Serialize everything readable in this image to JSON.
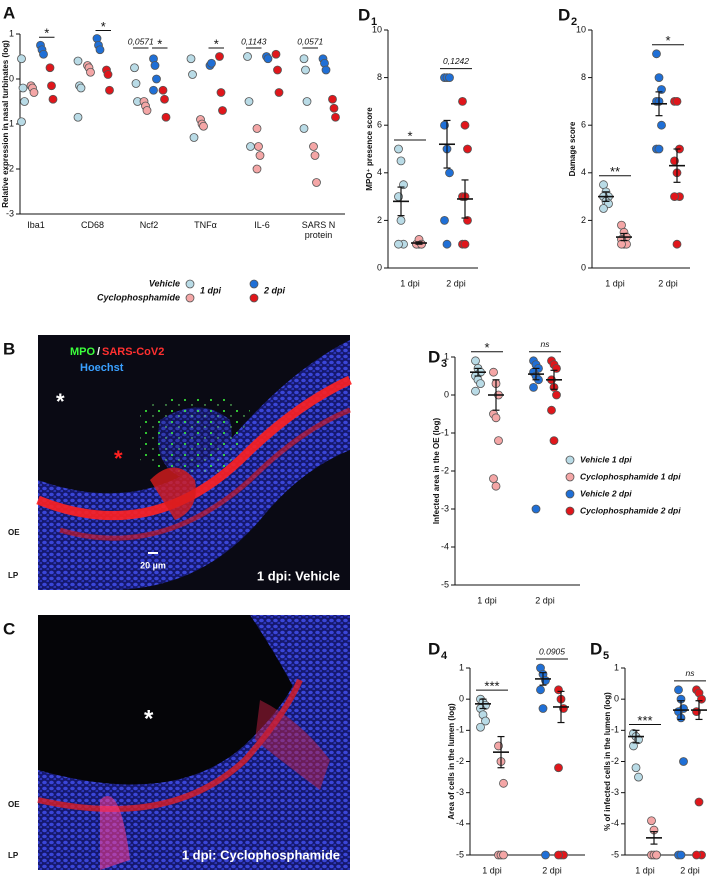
{
  "chart_data": [
    {
      "type": "dot",
      "panel": "A",
      "ylabel": "Relative expression in nasal turbinates (log)",
      "categories": [
        "Iba1",
        "CD68",
        "Ncf2",
        "TNFα",
        "IL-6",
        "SARS N protein"
      ],
      "groups": [
        "1 dpi",
        "2 dpi"
      ],
      "ylim": [
        -3,
        1
      ],
      "yticks": [
        -3,
        -2,
        -1,
        0,
        1
      ],
      "series": [
        {
          "name": "Vehicle",
          "colors": [
            "#b9dbe6",
            "#1f6fd6"
          ],
          "values": [
            [
              [
                0.45,
                -0.2,
                -0.5,
                -0.95
              ],
              [
                0.75,
                0.65,
                0.55
              ]
            ],
            [
              [
                0.4,
                -0.15,
                -0.2,
                -0.85
              ],
              [
                0.9,
                0.75,
                0.65
              ]
            ],
            [
              [
                0.25,
                -0.1,
                -0.5
              ],
              [
                0.45,
                0.3,
                0,
                -0.25
              ]
            ],
            [
              [
                0.45,
                0.1,
                -1.3
              ],
              [
                0.3,
                0.35
              ]
            ],
            [
              [
                0.5,
                -0.5,
                -1.5
              ],
              [
                0.5,
                0.45
              ]
            ],
            [
              [
                0.45,
                0.2,
                -0.5,
                -1.1
              ],
              [
                0.45,
                0.35,
                0.2
              ]
            ]
          ]
        },
        {
          "name": "Cyclophosphamide",
          "colors": [
            "#f4a6a6",
            "#e0161b"
          ],
          "values": [
            [
              [
                -0.15,
                -0.2,
                -0.3
              ],
              [
                0.25,
                -0.15,
                -0.45
              ]
            ],
            [
              [
                0.3,
                0.25,
                0.15
              ],
              [
                0.2,
                0.1,
                -0.25
              ]
            ],
            [
              [
                -0.5,
                -0.6,
                -0.7
              ],
              [
                -0.25,
                -0.45,
                -0.85
              ]
            ],
            [
              [
                -0.9,
                -1.0,
                -1.05
              ],
              [
                0.5,
                -0.3,
                -0.7
              ]
            ],
            [
              [
                -1.1,
                -1.5,
                -1.7,
                -2.0
              ],
              [
                0.55,
                0.2,
                -0.3
              ]
            ],
            [
              [
                -1.5,
                -1.7,
                -2.3
              ],
              [
                -0.45,
                -0.65,
                -0.85
              ]
            ]
          ]
        }
      ],
      "annotations": [
        {
          "text": "*",
          "category": 0,
          "group": 1
        },
        {
          "text": "*",
          "category": 1,
          "group": 1
        },
        {
          "text": "0,0571",
          "category": 2,
          "group": 0
        },
        {
          "text": "*",
          "category": 2,
          "group": 1
        },
        {
          "text": "*",
          "category": 3,
          "group": 1
        },
        {
          "text": "0,1143",
          "category": 4,
          "group": 0
        },
        {
          "text": "0,0571",
          "category": 5,
          "group": 0
        }
      ]
    },
    {
      "type": "group-dot",
      "panel": "D",
      "panel_index": "1",
      "ylabel": "MPO⁺ presence score",
      "groups": [
        "1 dpi",
        "2 dpi"
      ],
      "ylim": [
        0,
        10
      ],
      "yticks": [
        0,
        2,
        4,
        6,
        8,
        10
      ],
      "series": [
        {
          "colors": [
            "#b9dbe6",
            "#1f6fd6"
          ],
          "values": [
            [
              5,
              4.5,
              3.5,
              3,
              2,
              1,
              1
            ],
            [
              8,
              8,
              8,
              6,
              5,
              4,
              2,
              1
            ]
          ],
          "means": [
            2.8,
            5.2
          ],
          "sems": [
            0.6,
            1.0
          ]
        },
        {
          "colors": [
            "#f4a6a6",
            "#e0161b"
          ],
          "values": [
            [
              1,
              1,
              1,
              1,
              1.2,
              1
            ],
            [
              7,
              6,
              5,
              3,
              3,
              2,
              1,
              1
            ]
          ],
          "means": [
            1.05,
            2.9
          ],
          "sems": [
            0.05,
            0.8
          ]
        }
      ],
      "annotations": [
        {
          "text": "*",
          "group": 0
        },
        {
          "text": "0,1242",
          "group": 1
        }
      ]
    },
    {
      "type": "group-dot",
      "panel": "D",
      "panel_index": "2",
      "ylabel": "Damage score",
      "groups": [
        "1 dpi",
        "2 dpi"
      ],
      "ylim": [
        0,
        10
      ],
      "yticks": [
        0,
        2,
        4,
        6,
        8,
        10
      ],
      "series": [
        {
          "colors": [
            "#b9dbe6",
            "#1f6fd6"
          ],
          "values": [
            [
              3.5,
              3.2,
              3,
              3,
              2.8,
              2.7,
              2.5
            ],
            [
              9,
              8,
              7.5,
              7,
              7,
              6,
              5,
              5
            ]
          ],
          "means": [
            3,
            6.9
          ],
          "sems": [
            0.2,
            0.5
          ]
        },
        {
          "colors": [
            "#f4a6a6",
            "#e0161b"
          ],
          "values": [
            [
              1.8,
              1.5,
              1.3,
              1.2,
              1,
              1,
              1
            ],
            [
              7,
              7,
              5,
              4.5,
              4,
              3,
              3,
              1
            ]
          ],
          "means": [
            1.3,
            4.3
          ],
          "sems": [
            0.15,
            0.7
          ]
        }
      ],
      "annotations": [
        {
          "text": "**",
          "group": 0
        },
        {
          "text": "*",
          "group": 1
        }
      ]
    },
    {
      "type": "group-dot",
      "panel": "D",
      "panel_index": "3",
      "ylabel": "Infected area in the OE (log)",
      "groups": [
        "1 dpi",
        "2 dpi"
      ],
      "ylim": [
        -5,
        1
      ],
      "yticks": [
        -5,
        -4,
        -3,
        -2,
        -1,
        0,
        1
      ],
      "series": [
        {
          "colors": [
            "#b9dbe6",
            "#1f6fd6"
          ],
          "values": [
            [
              0.9,
              0.7,
              0.6,
              0.5,
              0.4,
              0.3,
              0.1
            ],
            [
              0.9,
              0.8,
              0.7,
              0.6,
              0.5,
              0.4,
              0.2,
              -3
            ]
          ],
          "means": [
            0.6,
            0.55
          ],
          "sems": [
            0.1,
            0.15
          ]
        },
        {
          "colors": [
            "#f4a6a6",
            "#e0161b"
          ],
          "values": [
            [
              0.6,
              0.3,
              0,
              -0.5,
              -0.6,
              -1.2,
              -2.2,
              -2.4
            ],
            [
              0.9,
              0.8,
              0.7,
              0.4,
              0.2,
              0,
              -0.4,
              -1.2
            ]
          ],
          "means": [
            0,
            0.4
          ],
          "sems": [
            0.4,
            0.25
          ]
        }
      ],
      "annotations": [
        {
          "text": "*",
          "group": 0
        },
        {
          "text": "ns",
          "group": 1
        }
      ],
      "legend": [
        "Vehicle 1 dpi",
        "Cyclophosphamide 1 dpi",
        "Vehicle 2 dpi",
        "Cyclophosphamide 2 dpi"
      ]
    },
    {
      "type": "group-dot",
      "panel": "D",
      "panel_index": "4",
      "ylabel": "Area of cells in the lumen (log)",
      "groups": [
        "1 dpi",
        "2 dpi"
      ],
      "ylim": [
        -5,
        1
      ],
      "yticks": [
        -5,
        -4,
        -3,
        -2,
        -1,
        0,
        1
      ],
      "series": [
        {
          "colors": [
            "#b9dbe6",
            "#1f6fd6"
          ],
          "values": [
            [
              0,
              -0.1,
              -0.2,
              -0.3,
              -0.5,
              -0.7,
              -0.9
            ],
            [
              1,
              0.8,
              0.6,
              0.3,
              -0.3,
              -5
            ]
          ],
          "means": [
            -0.15,
            0.65
          ],
          "sems": [
            0.15,
            0.2
          ]
        },
        {
          "colors": [
            "#f4a6a6",
            "#e0161b"
          ],
          "values": [
            [
              -1.5,
              -2,
              -2.7,
              -5,
              -5,
              -5
            ],
            [
              0.3,
              0,
              -0.3,
              -2.2,
              -5,
              -5,
              -5
            ]
          ],
          "means": [
            -1.7,
            -0.25
          ],
          "sems": [
            0.5,
            0.5
          ]
        }
      ],
      "annotations": [
        {
          "text": "***",
          "group": 0
        },
        {
          "text": "0.0905",
          "group": 1
        }
      ]
    },
    {
      "type": "group-dot",
      "panel": "D",
      "panel_index": "5",
      "ylabel": "% of infected cells in the lumen (log)",
      "groups": [
        "1 dpi",
        "2 dpi"
      ],
      "ylim": [
        -5,
        1
      ],
      "yticks": [
        -5,
        -4,
        -3,
        -2,
        -1,
        0,
        1
      ],
      "series": [
        {
          "colors": [
            "#b9dbe6",
            "#1f6fd6"
          ],
          "values": [
            [
              -1.1,
              -1.2,
              -1.3,
              -1.5,
              -2.2,
              -2.5
            ],
            [
              0.3,
              0,
              -0.3,
              -0.4,
              -0.6,
              -2,
              -5,
              -5
            ]
          ],
          "means": [
            -1.2,
            -0.35
          ],
          "sems": [
            0.2,
            0.3
          ]
        },
        {
          "colors": [
            "#f4a6a6",
            "#e0161b"
          ],
          "values": [
            [
              -3.9,
              -4.2,
              -5,
              -5,
              -5,
              -5
            ],
            [
              0.3,
              0.2,
              0,
              -0.4,
              -3.3,
              -5,
              -5
            ]
          ],
          "means": [
            -4.45,
            -0.35
          ],
          "sems": [
            0.2,
            0.3
          ]
        }
      ],
      "annotations": [
        {
          "text": "***",
          "group": 0
        },
        {
          "text": "ns",
          "group": 1
        }
      ]
    }
  ],
  "images": [
    {
      "label": "B",
      "stain": [
        "MPO",
        "/",
        "SARS-CoV2",
        "Hoechst"
      ],
      "markers": [
        "*",
        "*"
      ],
      "layers": [
        "OE",
        "LP"
      ],
      "scale_bar": "20 µm",
      "caption": "1 dpi: Vehicle"
    },
    {
      "label": "C",
      "markers": [
        "*"
      ],
      "layers": [
        "OE",
        "LP"
      ],
      "caption": "1 dpi: Cyclophosphamide"
    }
  ]
}
